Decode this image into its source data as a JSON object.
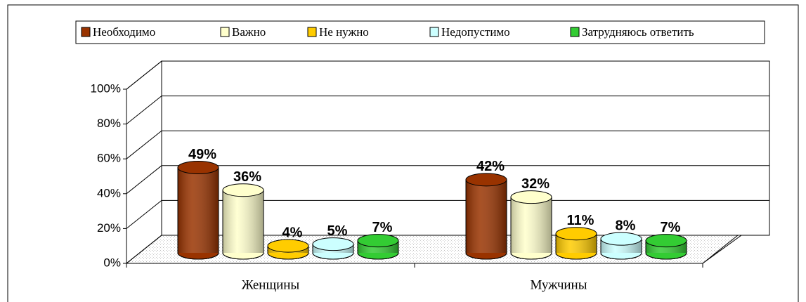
{
  "chart_data": {
    "type": "bar",
    "categories": [
      "Женщины",
      "Мужчины"
    ],
    "series": [
      {
        "name": "Необходимо",
        "color": "#993300",
        "values": [
          49,
          42
        ],
        "value_labels": [
          "49%",
          "42%"
        ]
      },
      {
        "name": "Важно",
        "color": "#FFFFCC",
        "values": [
          36,
          32
        ],
        "value_labels": [
          "36%",
          "32%"
        ]
      },
      {
        "name": "Не нужно",
        "color": "#FFCC00",
        "values": [
          4,
          11
        ],
        "value_labels": [
          "4%",
          "11%"
        ]
      },
      {
        "name": "Недопустимо",
        "color": "#CCFFFF",
        "values": [
          5,
          8
        ],
        "value_labels": [
          "5%",
          "8%"
        ]
      },
      {
        "name": "Затрудняюсь ответить",
        "color": "#33CC33",
        "values": [
          7,
          7
        ],
        "value_labels": [
          "7%",
          "7%"
        ]
      }
    ],
    "ylim": [
      0,
      100
    ],
    "yticks": [
      {
        "value": 0,
        "label": "0%"
      },
      {
        "value": 20,
        "label": "20%"
      },
      {
        "value": 40,
        "label": "40%"
      },
      {
        "value": 60,
        "label": "60%"
      },
      {
        "value": 80,
        "label": "80%"
      },
      {
        "value": 100,
        "label": "100%"
      }
    ],
    "grid": true,
    "legend": "top"
  }
}
